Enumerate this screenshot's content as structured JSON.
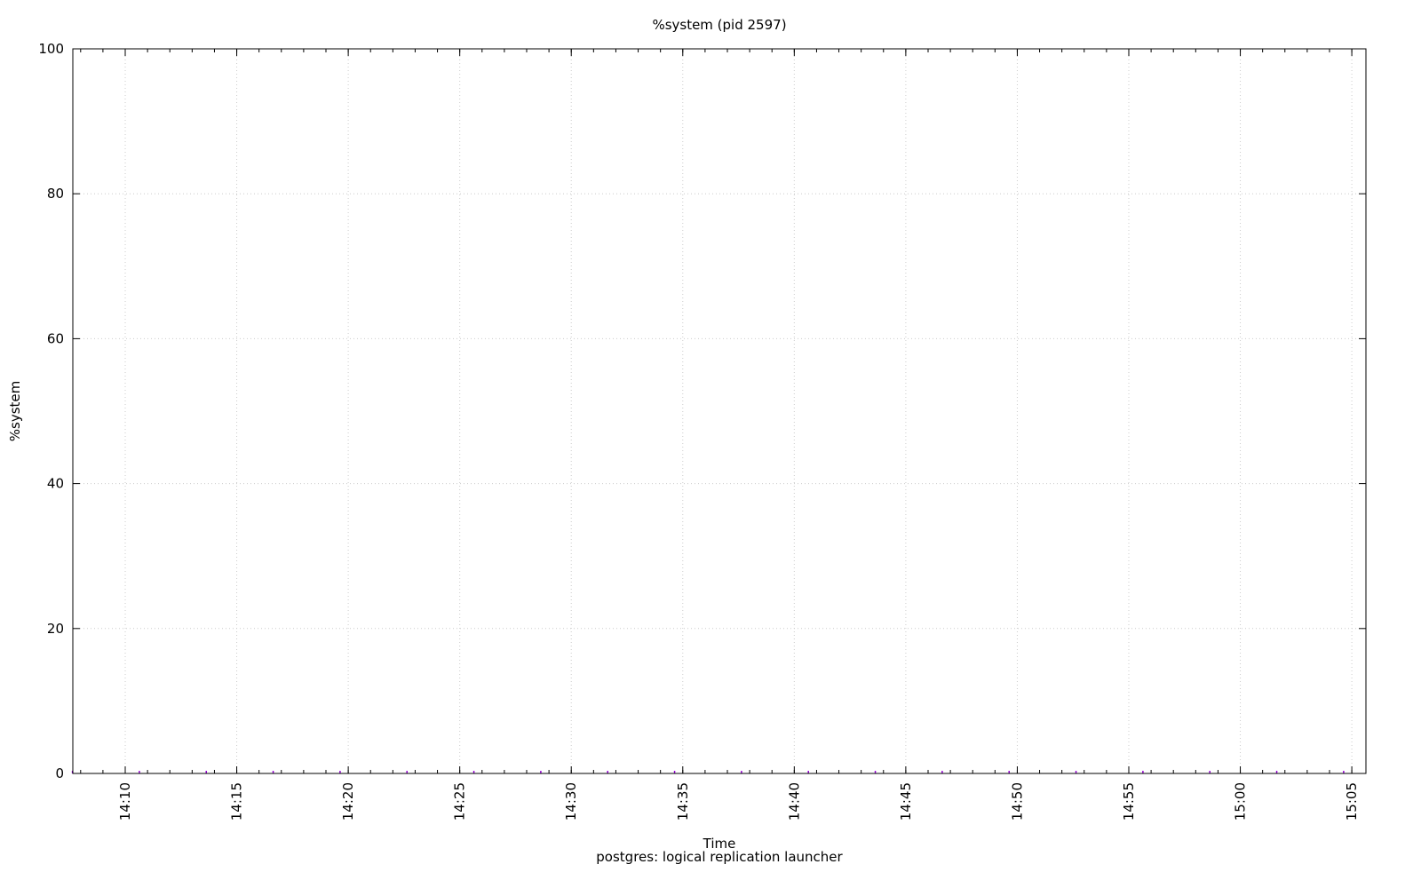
{
  "chart_data": {
    "type": "line",
    "title": "%system (pid 2597)",
    "xlabel": "Time",
    "subtitle": "postgres: logical replication launcher",
    "ylabel": "%system",
    "ylim": [
      0,
      100
    ],
    "yticks": [
      "0",
      "20",
      "40",
      "60",
      "80",
      "100"
    ],
    "xlim": [
      "14:07:39",
      "15:05:38"
    ],
    "xticks": [
      "14:10",
      "14:15",
      "14:20",
      "14:25",
      "14:30",
      "14:35",
      "14:40",
      "14:45",
      "14:50",
      "14:55",
      "15:00",
      "15:05"
    ],
    "grid": true,
    "series": [
      {
        "color": "#9400d3",
        "x": [
          "14:07:38",
          "14:10:38",
          "14:13:38",
          "14:16:38",
          "14:19:38",
          "14:22:38",
          "14:25:38",
          "14:28:38",
          "14:31:38",
          "14:34:38",
          "14:37:38",
          "14:40:38",
          "14:43:38",
          "14:46:38",
          "14:49:38",
          "14:52:38",
          "14:55:38",
          "14:58:38",
          "15:01:38",
          "15:04:38"
        ],
        "values": [
          0,
          0,
          0,
          0,
          0,
          0,
          0,
          0,
          0,
          0,
          0,
          0,
          0,
          0,
          0,
          0,
          0,
          0,
          0,
          0
        ]
      }
    ]
  }
}
